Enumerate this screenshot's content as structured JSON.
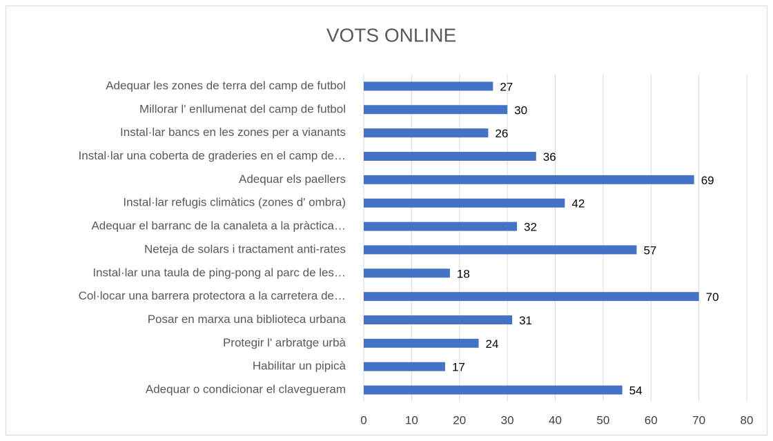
{
  "chart_data": {
    "type": "bar",
    "orientation": "horizontal",
    "title": "VOTS ONLINE",
    "categories": [
      "Adequar les zones de terra del camp de futbol",
      "Millorar l' enllumenat del camp de futbol",
      "Instal·lar bancs en les zones per a vianants",
      "Instal·lar una coberta de graderies en el camp de…",
      "Adequar els paellers",
      "Instal·lar refugis climàtics (zones d' ombra)",
      "Adequar el barranc de la canaleta a la pràctica…",
      "Neteja de solars i tractament anti-rates",
      "Instal·lar una taula de ping-pong al parc de les…",
      "Col·locar una barrera protectora a la carretera de…",
      "Posar en marxa una biblioteca urbana",
      "Protegir l' arbratge urbà",
      "Habilitar un pipicà",
      "Adequar o condicionar el clavegueram"
    ],
    "values": [
      27,
      30,
      26,
      36,
      69,
      42,
      32,
      57,
      18,
      70,
      31,
      24,
      17,
      54
    ],
    "color": "#4472c4",
    "xlim": [
      0,
      80
    ],
    "xticks": [
      0,
      10,
      20,
      30,
      40,
      50,
      60,
      70,
      80
    ],
    "grid": true
  }
}
